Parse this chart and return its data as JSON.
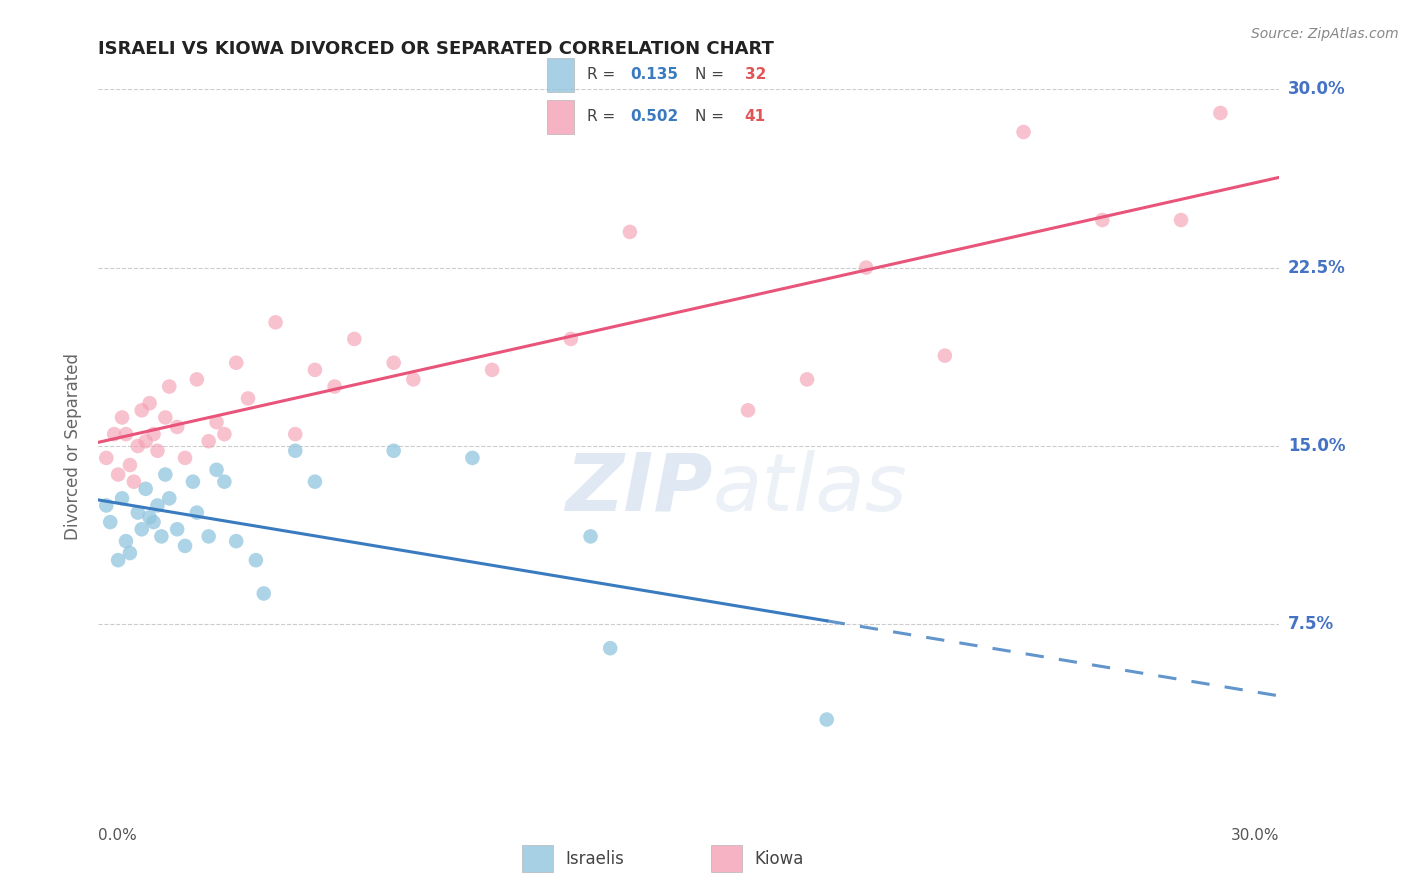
{
  "title": "ISRAELI VS KIOWA DIVORCED OR SEPARATED CORRELATION CHART",
  "source": "Source: ZipAtlas.com",
  "ylabel": "Divorced or Separated",
  "xlim": [
    0.0,
    30.0
  ],
  "ylim": [
    0.0,
    30.0
  ],
  "ytick_values": [
    7.5,
    15.0,
    22.5,
    30.0
  ],
  "legend_r_israeli": "0.135",
  "legend_n_israeli": "32",
  "legend_r_kiowa": "0.502",
  "legend_n_kiowa": "41",
  "israeli_color": "#92c5de",
  "kiowa_color": "#f4a0b5",
  "israeli_line_color": "#3a7bbf",
  "kiowa_line_color": "#e8547a",
  "background_color": "#ffffff",
  "watermark_zip": "ZIP",
  "watermark_atlas": "atlas",
  "israeli_x": [
    0.2,
    0.3,
    0.5,
    0.6,
    0.7,
    0.8,
    1.0,
    1.1,
    1.2,
    1.3,
    1.4,
    1.5,
    1.6,
    1.7,
    1.8,
    2.0,
    2.2,
    2.4,
    2.5,
    2.8,
    3.0,
    3.2,
    3.5,
    4.0,
    4.2,
    5.0,
    5.5,
    7.5,
    9.5,
    12.5,
    13.0,
    18.5
  ],
  "israeli_y": [
    12.5,
    11.8,
    10.2,
    12.8,
    11.0,
    10.5,
    12.2,
    11.5,
    13.2,
    12.0,
    11.8,
    12.5,
    11.2,
    13.8,
    12.8,
    11.5,
    10.8,
    13.5,
    12.2,
    11.2,
    14.0,
    13.5,
    11.0,
    10.2,
    8.8,
    14.8,
    13.5,
    14.8,
    14.5,
    11.2,
    6.5,
    3.5
  ],
  "kiowa_x": [
    0.2,
    0.4,
    0.5,
    0.6,
    0.7,
    0.8,
    0.9,
    1.0,
    1.1,
    1.2,
    1.3,
    1.4,
    1.5,
    1.7,
    1.8,
    2.0,
    2.2,
    2.5,
    2.8,
    3.0,
    3.2,
    3.5,
    3.8,
    4.5,
    5.0,
    5.5,
    6.0,
    6.5,
    7.5,
    8.0,
    10.0,
    12.0,
    13.5,
    16.5,
    18.0,
    19.5,
    21.5,
    23.5,
    25.5,
    27.5,
    28.5
  ],
  "kiowa_y": [
    14.5,
    15.5,
    13.8,
    16.2,
    15.5,
    14.2,
    13.5,
    15.0,
    16.5,
    15.2,
    16.8,
    15.5,
    14.8,
    16.2,
    17.5,
    15.8,
    14.5,
    17.8,
    15.2,
    16.0,
    15.5,
    18.5,
    17.0,
    20.2,
    15.5,
    18.2,
    17.5,
    19.5,
    18.5,
    17.8,
    18.2,
    19.5,
    24.0,
    16.5,
    17.8,
    22.5,
    18.8,
    28.2,
    24.5,
    24.5,
    29.0
  ]
}
